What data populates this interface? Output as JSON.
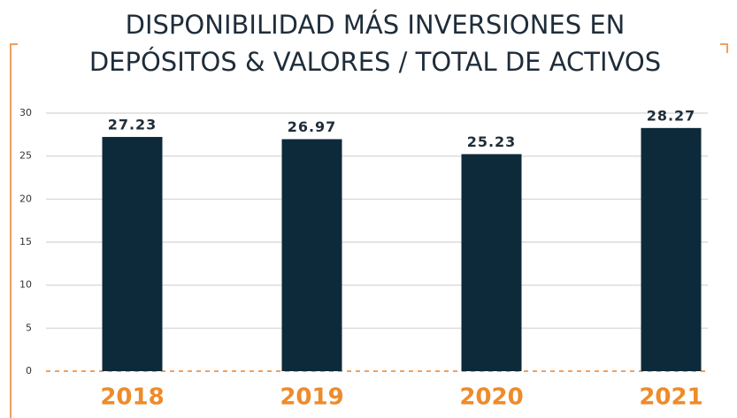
{
  "chart_data": {
    "type": "bar",
    "title": [
      "DISPONIBILIDAD MÁS INVERSIONES EN",
      "DEPÓSITOS & VALORES / TOTAL DE ACTIVOS"
    ],
    "categories": [
      "2018",
      "2019",
      "2020",
      "2021"
    ],
    "values": [
      27.23,
      26.97,
      25.23,
      28.27
    ],
    "color": "#0d2a3a",
    "ylim": [
      0,
      30
    ],
    "yticks": [
      0,
      5,
      10,
      15,
      20,
      25,
      30
    ],
    "grid": true
  }
}
